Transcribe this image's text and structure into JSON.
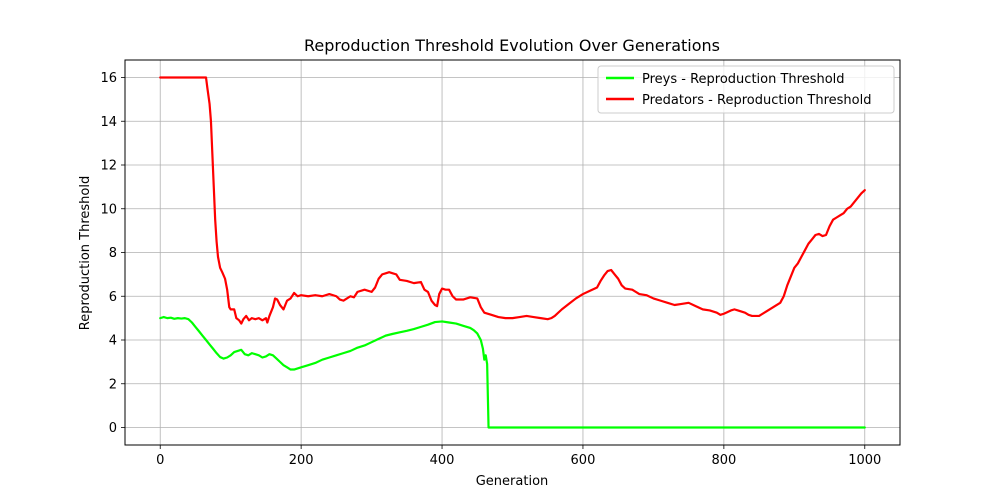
{
  "chart_data": {
    "type": "line",
    "title": "Reproduction Threshold Evolution Over Generations",
    "xlabel": "Generation",
    "ylabel": "Reproduction Threshold",
    "xlim": [
      -50,
      1050
    ],
    "ylim": [
      -0.8,
      16.8
    ],
    "xticks": [
      0,
      200,
      400,
      600,
      800,
      1000
    ],
    "yticks": [
      0,
      2,
      4,
      6,
      8,
      10,
      12,
      14,
      16
    ],
    "grid": true,
    "legend_position": "top-right",
    "series": [
      {
        "name": "Preys - Reproduction Threshold",
        "color": "#00ff00",
        "points": [
          [
            0,
            5.0
          ],
          [
            5,
            5.05
          ],
          [
            10,
            5.0
          ],
          [
            15,
            5.02
          ],
          [
            20,
            4.97
          ],
          [
            25,
            5.0
          ],
          [
            30,
            4.98
          ],
          [
            35,
            5.0
          ],
          [
            40,
            4.95
          ],
          [
            45,
            4.8
          ],
          [
            50,
            4.6
          ],
          [
            55,
            4.4
          ],
          [
            60,
            4.2
          ],
          [
            65,
            4.0
          ],
          [
            70,
            3.8
          ],
          [
            75,
            3.6
          ],
          [
            80,
            3.4
          ],
          [
            85,
            3.22
          ],
          [
            90,
            3.15
          ],
          [
            95,
            3.2
          ],
          [
            100,
            3.3
          ],
          [
            105,
            3.45
          ],
          [
            110,
            3.5
          ],
          [
            115,
            3.55
          ],
          [
            120,
            3.35
          ],
          [
            125,
            3.3
          ],
          [
            130,
            3.4
          ],
          [
            135,
            3.35
          ],
          [
            140,
            3.3
          ],
          [
            145,
            3.2
          ],
          [
            150,
            3.25
          ],
          [
            155,
            3.35
          ],
          [
            160,
            3.3
          ],
          [
            165,
            3.15
          ],
          [
            170,
            3.0
          ],
          [
            175,
            2.85
          ],
          [
            180,
            2.75
          ],
          [
            185,
            2.65
          ],
          [
            190,
            2.65
          ],
          [
            195,
            2.7
          ],
          [
            200,
            2.75
          ],
          [
            210,
            2.85
          ],
          [
            220,
            2.95
          ],
          [
            230,
            3.1
          ],
          [
            240,
            3.2
          ],
          [
            250,
            3.3
          ],
          [
            260,
            3.4
          ],
          [
            270,
            3.5
          ],
          [
            280,
            3.65
          ],
          [
            290,
            3.75
          ],
          [
            300,
            3.9
          ],
          [
            310,
            4.05
          ],
          [
            320,
            4.2
          ],
          [
            330,
            4.28
          ],
          [
            340,
            4.35
          ],
          [
            350,
            4.42
          ],
          [
            360,
            4.5
          ],
          [
            370,
            4.6
          ],
          [
            380,
            4.7
          ],
          [
            390,
            4.82
          ],
          [
            400,
            4.85
          ],
          [
            410,
            4.8
          ],
          [
            420,
            4.75
          ],
          [
            430,
            4.65
          ],
          [
            440,
            4.55
          ],
          [
            445,
            4.45
          ],
          [
            450,
            4.3
          ],
          [
            455,
            4.0
          ],
          [
            458,
            3.6
          ],
          [
            460,
            3.1
          ],
          [
            462,
            3.3
          ],
          [
            464,
            2.9
          ],
          [
            466,
            0.0
          ],
          [
            500,
            0.0
          ],
          [
            600,
            0.0
          ],
          [
            700,
            0.0
          ],
          [
            800,
            0.0
          ],
          [
            900,
            0.0
          ],
          [
            1000,
            0.0
          ]
        ]
      },
      {
        "name": "Predators - Reproduction Threshold",
        "color": "#ff0000",
        "points": [
          [
            0,
            16.0
          ],
          [
            20,
            16.0
          ],
          [
            40,
            16.0
          ],
          [
            60,
            16.0
          ],
          [
            65,
            16.0
          ],
          [
            67,
            15.5
          ],
          [
            70,
            14.8
          ],
          [
            72,
            14.0
          ],
          [
            74,
            12.5
          ],
          [
            76,
            11.0
          ],
          [
            78,
            9.5
          ],
          [
            80,
            8.5
          ],
          [
            82,
            7.8
          ],
          [
            85,
            7.3
          ],
          [
            88,
            7.1
          ],
          [
            92,
            6.8
          ],
          [
            95,
            6.3
          ],
          [
            98,
            5.5
          ],
          [
            100,
            5.4
          ],
          [
            105,
            5.4
          ],
          [
            108,
            5.0
          ],
          [
            112,
            4.9
          ],
          [
            115,
            4.75
          ],
          [
            118,
            4.95
          ],
          [
            122,
            5.1
          ],
          [
            126,
            4.9
          ],
          [
            130,
            5.0
          ],
          [
            135,
            4.95
          ],
          [
            140,
            5.0
          ],
          [
            145,
            4.9
          ],
          [
            150,
            5.0
          ],
          [
            152,
            4.8
          ],
          [
            155,
            5.1
          ],
          [
            160,
            5.5
          ],
          [
            163,
            5.9
          ],
          [
            166,
            5.85
          ],
          [
            170,
            5.6
          ],
          [
            175,
            5.4
          ],
          [
            180,
            5.8
          ],
          [
            185,
            5.9
          ],
          [
            190,
            6.15
          ],
          [
            195,
            6.0
          ],
          [
            200,
            6.05
          ],
          [
            210,
            6.0
          ],
          [
            220,
            6.05
          ],
          [
            230,
            6.0
          ],
          [
            240,
            6.1
          ],
          [
            250,
            6.0
          ],
          [
            255,
            5.85
          ],
          [
            260,
            5.8
          ],
          [
            265,
            5.9
          ],
          [
            270,
            6.0
          ],
          [
            275,
            5.95
          ],
          [
            280,
            6.2
          ],
          [
            290,
            6.3
          ],
          [
            300,
            6.2
          ],
          [
            305,
            6.4
          ],
          [
            310,
            6.8
          ],
          [
            315,
            7.0
          ],
          [
            320,
            7.05
          ],
          [
            325,
            7.1
          ],
          [
            330,
            7.05
          ],
          [
            335,
            7.0
          ],
          [
            340,
            6.75
          ],
          [
            350,
            6.7
          ],
          [
            360,
            6.6
          ],
          [
            370,
            6.65
          ],
          [
            375,
            6.3
          ],
          [
            380,
            6.2
          ],
          [
            385,
            5.8
          ],
          [
            390,
            5.6
          ],
          [
            393,
            5.55
          ],
          [
            396,
            6.1
          ],
          [
            400,
            6.35
          ],
          [
            405,
            6.3
          ],
          [
            410,
            6.3
          ],
          [
            415,
            6.0
          ],
          [
            420,
            5.85
          ],
          [
            430,
            5.85
          ],
          [
            440,
            5.95
          ],
          [
            450,
            5.9
          ],
          [
            455,
            5.5
          ],
          [
            460,
            5.25
          ],
          [
            470,
            5.15
          ],
          [
            480,
            5.05
          ],
          [
            490,
            5.0
          ],
          [
            500,
            5.0
          ],
          [
            510,
            5.05
          ],
          [
            520,
            5.1
          ],
          [
            530,
            5.05
          ],
          [
            540,
            5.0
          ],
          [
            550,
            4.95
          ],
          [
            555,
            5.0
          ],
          [
            560,
            5.1
          ],
          [
            570,
            5.4
          ],
          [
            580,
            5.65
          ],
          [
            590,
            5.9
          ],
          [
            600,
            6.1
          ],
          [
            610,
            6.25
          ],
          [
            620,
            6.4
          ],
          [
            625,
            6.7
          ],
          [
            630,
            6.95
          ],
          [
            635,
            7.15
          ],
          [
            640,
            7.2
          ],
          [
            645,
            7.0
          ],
          [
            650,
            6.8
          ],
          [
            655,
            6.5
          ],
          [
            660,
            6.35
          ],
          [
            670,
            6.3
          ],
          [
            680,
            6.1
          ],
          [
            690,
            6.05
          ],
          [
            700,
            5.9
          ],
          [
            710,
            5.8
          ],
          [
            720,
            5.7
          ],
          [
            730,
            5.6
          ],
          [
            740,
            5.65
          ],
          [
            750,
            5.7
          ],
          [
            760,
            5.55
          ],
          [
            770,
            5.4
          ],
          [
            780,
            5.35
          ],
          [
            790,
            5.25
          ],
          [
            795,
            5.15
          ],
          [
            800,
            5.2
          ],
          [
            810,
            5.35
          ],
          [
            815,
            5.4
          ],
          [
            820,
            5.35
          ],
          [
            830,
            5.25
          ],
          [
            835,
            5.15
          ],
          [
            840,
            5.1
          ],
          [
            850,
            5.1
          ],
          [
            860,
            5.3
          ],
          [
            870,
            5.5
          ],
          [
            880,
            5.7
          ],
          [
            885,
            6.0
          ],
          [
            890,
            6.5
          ],
          [
            895,
            6.9
          ],
          [
            900,
            7.3
          ],
          [
            905,
            7.5
          ],
          [
            910,
            7.8
          ],
          [
            915,
            8.1
          ],
          [
            920,
            8.4
          ],
          [
            925,
            8.6
          ],
          [
            930,
            8.8
          ],
          [
            935,
            8.85
          ],
          [
            940,
            8.75
          ],
          [
            945,
            8.8
          ],
          [
            950,
            9.2
          ],
          [
            955,
            9.5
          ],
          [
            960,
            9.6
          ],
          [
            965,
            9.7
          ],
          [
            970,
            9.8
          ],
          [
            975,
            10.0
          ],
          [
            980,
            10.1
          ],
          [
            985,
            10.3
          ],
          [
            990,
            10.5
          ],
          [
            995,
            10.7
          ],
          [
            1000,
            10.85
          ]
        ]
      }
    ]
  }
}
